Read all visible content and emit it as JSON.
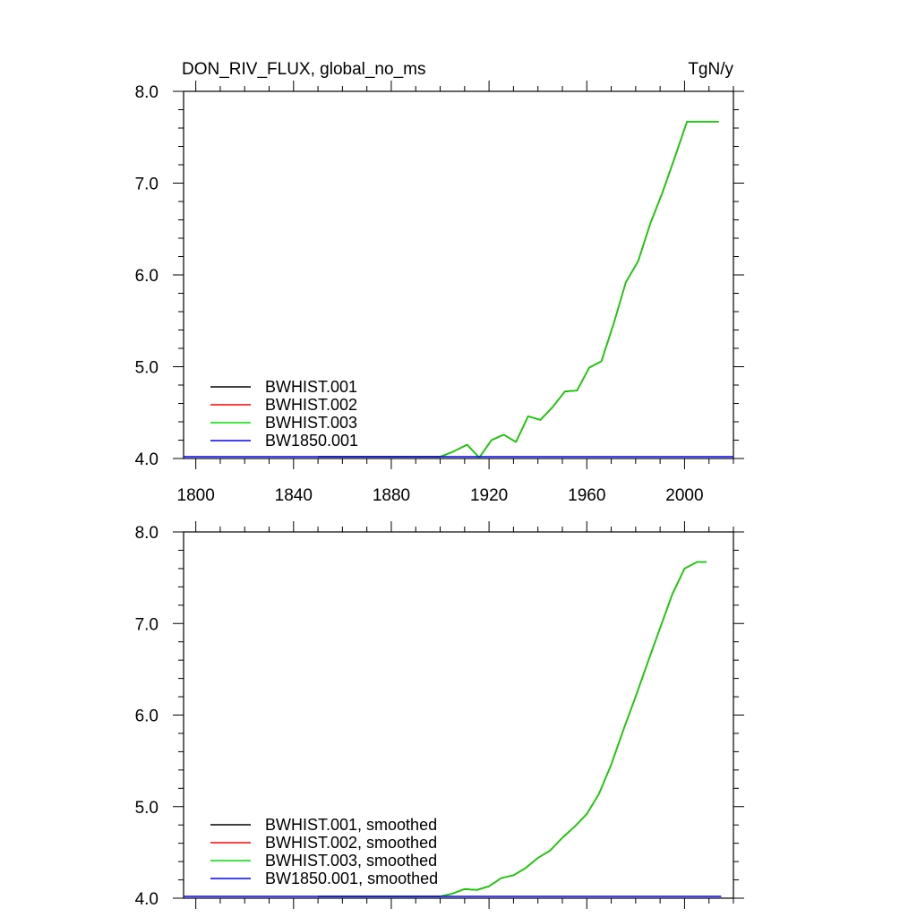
{
  "chart_data": [
    {
      "type": "line",
      "title": "DON_RIV_FLUX, global_no_ms",
      "units": "TgN/y",
      "xlim": [
        1795,
        2020
      ],
      "ylim": [
        4.0,
        8.0
      ],
      "xticks": [
        1800,
        1840,
        1880,
        1920,
        1960,
        2000
      ],
      "xtick_labels": [
        "1800",
        "1840",
        "1880",
        "1920",
        "1960",
        "2000"
      ],
      "yticks": [
        4.0,
        5.0,
        6.0,
        7.0,
        8.0
      ],
      "ytick_labels": [
        "4.0",
        "5.0",
        "6.0",
        "7.0",
        "8.0"
      ],
      "legend_position": "bottom-left",
      "series": [
        {
          "name": "BWHIST.001",
          "color": "#000000",
          "x": [
            1850,
            1900,
            1905,
            1911,
            1916,
            1921,
            1926,
            1931,
            1936,
            1941,
            1946,
            1951,
            1956,
            1961,
            1966,
            1971,
            1976,
            1981,
            1986,
            1991,
            1996,
            2001,
            2014
          ],
          "y": [
            4.02,
            4.02,
            4.07,
            4.15,
            4.01,
            4.2,
            4.26,
            4.18,
            4.46,
            4.42,
            4.56,
            4.73,
            4.74,
            4.99,
            5.06,
            5.47,
            5.92,
            6.15,
            6.56,
            6.9,
            7.28,
            7.67,
            7.67
          ]
        },
        {
          "name": "BWHIST.002",
          "color": "#ff0000",
          "x": [
            1850,
            1900,
            1905,
            1911,
            1916,
            1921,
            1926,
            1931,
            1936,
            1941,
            1946,
            1951,
            1956,
            1961,
            1966,
            1971,
            1976,
            1981,
            1986,
            1991,
            1996,
            2001,
            2014
          ],
          "y": [
            4.02,
            4.02,
            4.07,
            4.15,
            4.01,
            4.2,
            4.26,
            4.18,
            4.46,
            4.42,
            4.56,
            4.73,
            4.74,
            4.99,
            5.06,
            5.47,
            5.92,
            6.15,
            6.56,
            6.9,
            7.28,
            7.67,
            7.67
          ]
        },
        {
          "name": "BWHIST.003",
          "color": "#00dd00",
          "x": [
            1850,
            1900,
            1905,
            1911,
            1916,
            1921,
            1926,
            1931,
            1936,
            1941,
            1946,
            1951,
            1956,
            1961,
            1966,
            1971,
            1976,
            1981,
            1986,
            1991,
            1996,
            2001,
            2014
          ],
          "y": [
            4.02,
            4.02,
            4.07,
            4.15,
            4.01,
            4.2,
            4.26,
            4.18,
            4.46,
            4.42,
            4.56,
            4.73,
            4.74,
            4.99,
            5.06,
            5.47,
            5.92,
            6.15,
            6.56,
            6.9,
            7.28,
            7.67,
            7.67
          ]
        },
        {
          "name": "BW1850.001",
          "color": "#0000ff",
          "x": [
            1795,
            2020
          ],
          "y": [
            4.02,
            4.02
          ]
        }
      ]
    },
    {
      "type": "line",
      "title": "",
      "units": "",
      "xlim": [
        1795,
        2020
      ],
      "ylim": [
        4.0,
        8.0
      ],
      "xticks": [
        1800,
        1840,
        1880,
        1920,
        1960,
        2000
      ],
      "xtick_labels": [],
      "yticks": [
        4.0,
        5.0,
        6.0,
        7.0,
        8.0
      ],
      "ytick_labels": [
        "4.0",
        "5.0",
        "6.0",
        "7.0",
        "8.0"
      ],
      "legend_position": "bottom-left",
      "series": [
        {
          "name": "BWHIST.001, smoothed",
          "color": "#000000",
          "x": [
            1850,
            1900,
            1905,
            1910,
            1915,
            1920,
            1925,
            1930,
            1935,
            1940,
            1945,
            1950,
            1955,
            1960,
            1965,
            1970,
            1975,
            1980,
            1985,
            1990,
            1995,
            2000,
            2005,
            2009
          ],
          "y": [
            4.02,
            4.02,
            4.05,
            4.1,
            4.09,
            4.13,
            4.22,
            4.25,
            4.33,
            4.44,
            4.52,
            4.66,
            4.78,
            4.92,
            5.14,
            5.46,
            5.84,
            6.2,
            6.58,
            6.95,
            7.32,
            7.6,
            7.67,
            7.67
          ]
        },
        {
          "name": "BWHIST.002, smoothed",
          "color": "#ff0000",
          "x": [
            1850,
            1900,
            1905,
            1910,
            1915,
            1920,
            1925,
            1930,
            1935,
            1940,
            1945,
            1950,
            1955,
            1960,
            1965,
            1970,
            1975,
            1980,
            1985,
            1990,
            1995,
            2000,
            2005,
            2009
          ],
          "y": [
            4.02,
            4.02,
            4.05,
            4.1,
            4.09,
            4.13,
            4.22,
            4.25,
            4.33,
            4.44,
            4.52,
            4.66,
            4.78,
            4.92,
            5.14,
            5.46,
            5.84,
            6.2,
            6.58,
            6.95,
            7.32,
            7.6,
            7.67,
            7.67
          ]
        },
        {
          "name": "BWHIST.003, smoothed",
          "color": "#00dd00",
          "x": [
            1850,
            1900,
            1905,
            1910,
            1915,
            1920,
            1925,
            1930,
            1935,
            1940,
            1945,
            1950,
            1955,
            1960,
            1965,
            1970,
            1975,
            1980,
            1985,
            1990,
            1995,
            2000,
            2005,
            2009
          ],
          "y": [
            4.02,
            4.02,
            4.05,
            4.1,
            4.09,
            4.13,
            4.22,
            4.25,
            4.33,
            4.44,
            4.52,
            4.66,
            4.78,
            4.92,
            5.14,
            5.46,
            5.84,
            6.2,
            6.58,
            6.95,
            7.32,
            7.6,
            7.67,
            7.67
          ]
        },
        {
          "name": "BW1850.001, smoothed",
          "color": "#0000ff",
          "x": [
            1795,
            2015
          ],
          "y": [
            4.02,
            4.02
          ]
        }
      ]
    }
  ]
}
